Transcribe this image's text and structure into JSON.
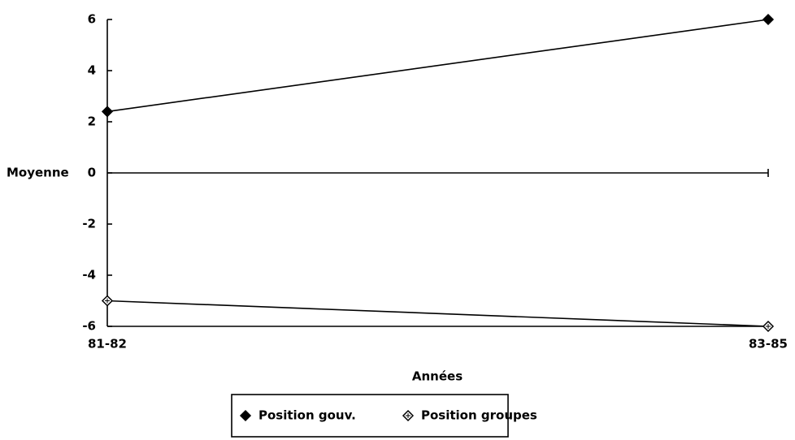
{
  "chart_data": {
    "type": "line",
    "categories": [
      "81-82",
      "83-85"
    ],
    "series": [
      {
        "name": "Position gouv.",
        "color": "#000000",
        "values": [
          2.4,
          6
        ]
      },
      {
        "name": "Position groupes",
        "color": "#000000",
        "values": [
          -5,
          -6
        ]
      }
    ],
    "ylabel": "Moyenne",
    "xlabel": "Années",
    "ylim": [
      -6,
      6
    ],
    "yticks": [
      -6,
      -4,
      -2,
      0,
      2,
      4,
      6
    ],
    "legend": "bottom"
  }
}
